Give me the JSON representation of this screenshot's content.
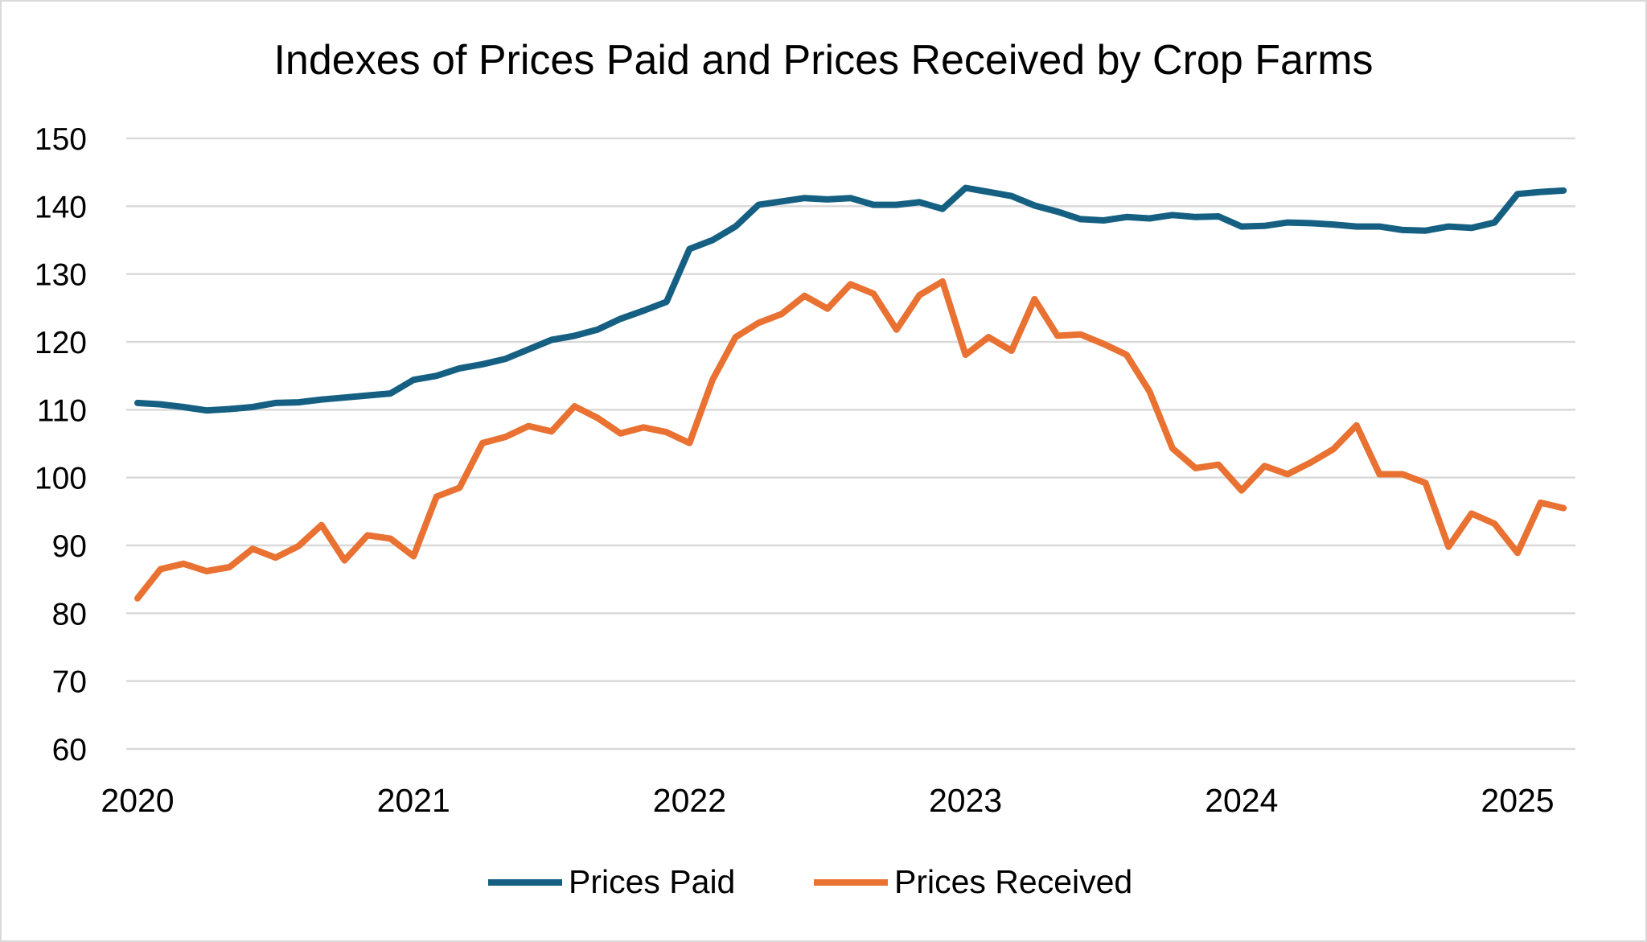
{
  "chart_data": {
    "type": "line",
    "title": "Indexes of Prices Paid and Prices Received by Crop Farms",
    "xlabel": "",
    "ylabel": "",
    "ylim": [
      60,
      150
    ],
    "yticks": [
      60,
      70,
      80,
      90,
      100,
      110,
      120,
      130,
      140,
      150
    ],
    "xticks": [
      "2020",
      "2021",
      "2022",
      "2023",
      "2024",
      "2025"
    ],
    "x_start": "2020-01",
    "x_end": "2025-03",
    "x_frequency": "monthly",
    "grid": "horizontal",
    "legend": "bottom",
    "series": [
      {
        "name": "Prices Paid",
        "color": "#156082",
        "values": [
          111.0,
          110.8,
          110.4,
          109.9,
          110.1,
          110.4,
          111.0,
          111.1,
          111.5,
          111.8,
          112.1,
          112.4,
          114.4,
          115.0,
          116.1,
          116.7,
          117.5,
          118.9,
          120.3,
          120.9,
          121.8,
          123.4,
          124.6,
          125.9,
          133.7,
          135.0,
          137.0,
          140.2,
          140.7,
          141.2,
          141.0,
          141.2,
          140.2,
          140.2,
          140.6,
          139.6,
          142.7,
          142.1,
          141.5,
          140.1,
          139.2,
          138.1,
          137.9,
          138.4,
          138.2,
          138.7,
          138.4,
          138.5,
          137.0,
          137.1,
          137.6,
          137.5,
          137.3,
          137.0,
          137.0,
          136.5,
          136.4,
          137.0,
          136.8,
          137.6,
          141.8,
          142.1,
          142.3
        ]
      },
      {
        "name": "Prices Received",
        "color": "#E97132",
        "values": [
          82.2,
          86.5,
          87.3,
          86.2,
          86.8,
          89.5,
          88.2,
          89.9,
          93.0,
          87.8,
          91.5,
          91.0,
          88.4,
          97.2,
          98.5,
          105.1,
          106.0,
          107.6,
          106.8,
          110.5,
          108.8,
          106.5,
          107.4,
          106.7,
          105.1,
          114.4,
          120.7,
          122.8,
          124.1,
          126.8,
          124.9,
          128.5,
          127.1,
          121.8,
          126.9,
          128.9,
          118.1,
          120.7,
          118.7,
          126.3,
          120.9,
          121.1,
          119.7,
          118.1,
          112.7,
          104.3,
          101.4,
          101.9,
          98.1,
          101.7,
          100.5,
          102.2,
          104.2,
          107.7,
          100.5,
          100.5,
          99.2,
          89.8,
          94.7,
          93.2,
          88.9,
          96.3,
          95.5
        ]
      }
    ]
  }
}
